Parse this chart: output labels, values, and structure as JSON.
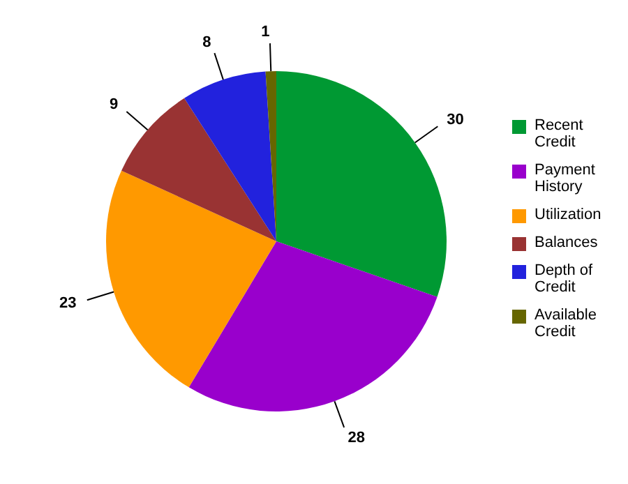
{
  "chart_data": {
    "type": "pie",
    "categories": [
      "Recent Credit",
      "Payment History",
      "Utilization",
      "Balances",
      "Depth of Credit",
      "Available Credit"
    ],
    "values": [
      30,
      28,
      23,
      9,
      8,
      1
    ],
    "colors": [
      "#009933",
      "#9900cc",
      "#ff9900",
      "#993333",
      "#2222dd",
      "#666600"
    ],
    "data_labels": true,
    "legend": "right"
  }
}
